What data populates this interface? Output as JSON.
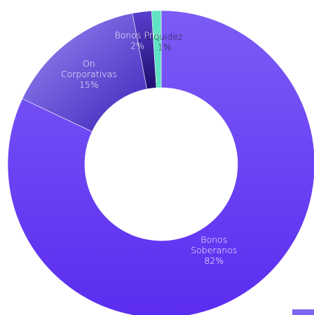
{
  "chart_data": {
    "type": "pie",
    "donut": true,
    "title": "",
    "slices": [
      {
        "label_lines": [
          "Bonos",
          "Soberanos"
        ],
        "percent_label": "82%",
        "value": 82,
        "color": "#6a41f2",
        "label_color": "#ffffff"
      },
      {
        "label_lines": [
          "On",
          "Corporativas"
        ],
        "percent_label": "15%",
        "value": 15,
        "color": "#8a78f4",
        "label_color": "#ffffff"
      },
      {
        "label_lines": [
          "Bonos Priv"
        ],
        "percent_label": "2%",
        "value": 2,
        "color": "#3a1ab0",
        "label_color": "#ffffff"
      },
      {
        "label_lines": [
          "Liquidez"
        ],
        "percent_label": "1%",
        "value": 1,
        "color": "#5fe3c4",
        "label_color": "#1a1a1a"
      }
    ],
    "start_angle_deg": 0,
    "direction": "counterclockwise",
    "legend": "bottom-right (cropped)",
    "legend_swatch_color": "#7b66f2"
  }
}
